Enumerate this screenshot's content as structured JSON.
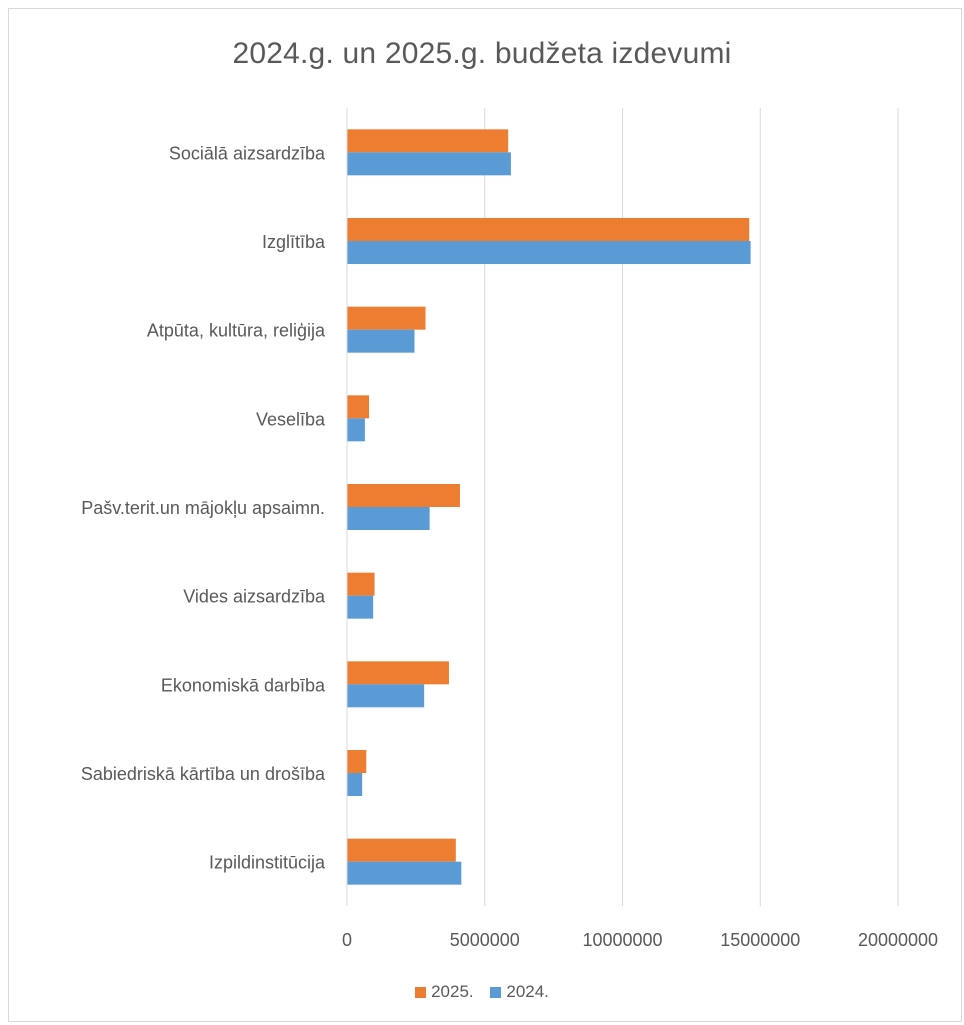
{
  "chart_data": {
    "type": "bar",
    "orientation": "horizontal",
    "title": "2024.g. un 2025.g. budžeta izdevumi",
    "xlabel": "",
    "ylabel": "",
    "xlim": [
      0,
      20000000
    ],
    "x_ticks": [
      0,
      5000000,
      10000000,
      15000000,
      20000000
    ],
    "x_tick_labels": [
      "0",
      "5000000",
      "10000000",
      "15000000",
      "20000000"
    ],
    "grid": true,
    "legend_position": "bottom",
    "categories": [
      "Sociālā aizsardzība",
      "Izglītība",
      "Atpūta, kultūra, reliģija",
      "Veselība",
      "Pašv.terit.un mājokļu apsaimn.",
      "Vides aizsardzība",
      "Ekonomiskā darbība",
      "Sabiedriskā kārtība un drošība",
      "Izpildinstitūcija"
    ],
    "series": [
      {
        "name": "2025.",
        "color": "#ed7d31",
        "values": [
          5850000,
          14600000,
          2850000,
          800000,
          4100000,
          1000000,
          3700000,
          700000,
          3950000
        ]
      },
      {
        "name": "2024.",
        "color": "#5b9bd5",
        "values": [
          5950000,
          14650000,
          2450000,
          650000,
          3000000,
          950000,
          2800000,
          550000,
          4150000
        ]
      }
    ]
  }
}
